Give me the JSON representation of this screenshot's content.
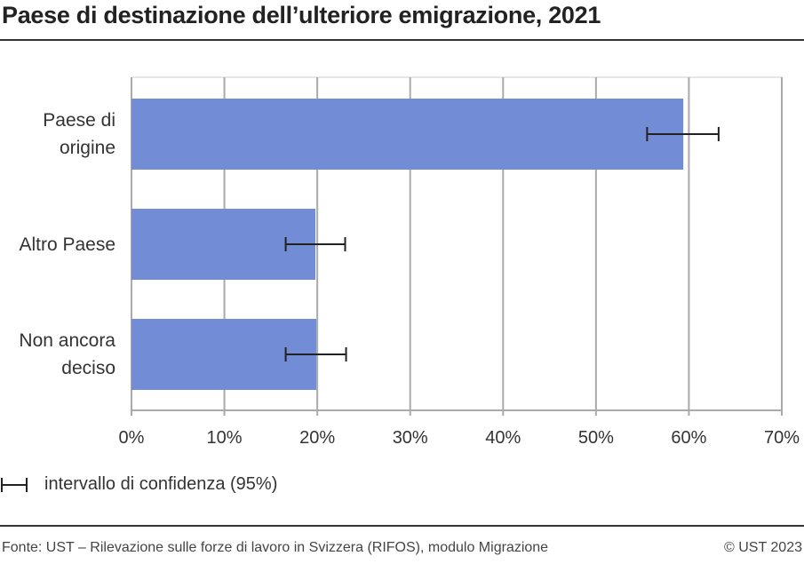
{
  "chart_data": {
    "type": "bar",
    "orientation": "horizontal",
    "title": "Paese di destinazione dell’ulteriore emigrazione, 2021",
    "categories": [
      "Paese di origine",
      "Altro Paese",
      "Non ancora deciso"
    ],
    "category_lines": [
      [
        "Paese di",
        "origine"
      ],
      [
        "Altro Paese"
      ],
      [
        "Non ancora",
        "deciso"
      ]
    ],
    "values": [
      59.4,
      19.8,
      19.9
    ],
    "ci_low": [
      55.5,
      16.6,
      16.6
    ],
    "ci_high": [
      63.2,
      23.0,
      23.1
    ],
    "xlim": [
      0,
      70
    ],
    "xticks": [
      "0%",
      "10%",
      "20%",
      "30%",
      "40%",
      "50%",
      "60%",
      "70%"
    ],
    "grid": true,
    "bar_color": "#728dd6",
    "legend": "intervallo di confidenza (95%)",
    "legend_placement": "bottom-left"
  },
  "footer": {
    "source": "Fonte: UST – Rilevazione sulle forze di lavoro in Svizzera (RIFOS), modulo Migrazione",
    "copyright": "© UST 2023"
  }
}
